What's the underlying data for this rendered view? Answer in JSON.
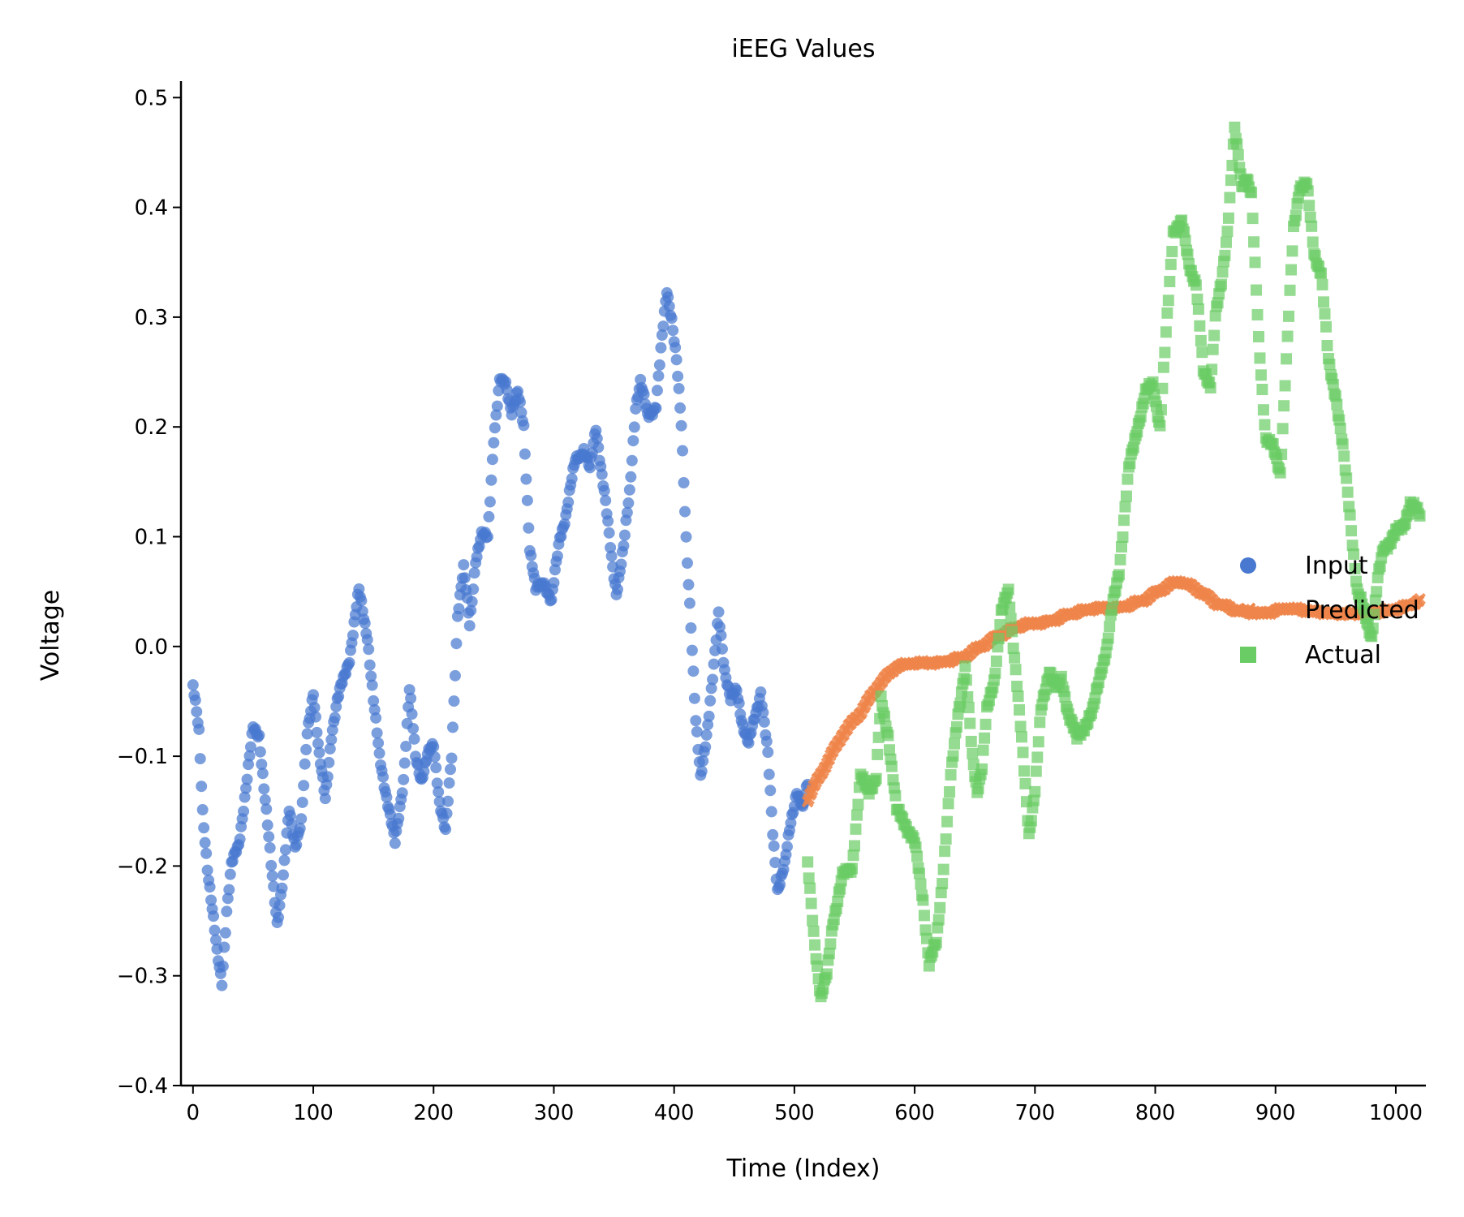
{
  "chart_data": {
    "type": "scatter",
    "title": "iEEG Values",
    "xlabel": "Time (Index)",
    "ylabel": "Voltage",
    "xlim": [
      -10,
      1025
    ],
    "ylim": [
      -0.4,
      0.515
    ],
    "xticks": [
      0,
      100,
      200,
      300,
      400,
      500,
      600,
      700,
      800,
      900,
      1000
    ],
    "yticks": [
      -0.4,
      -0.3,
      -0.2,
      -0.1,
      0.0,
      0.1,
      0.2,
      0.3,
      0.4,
      0.5
    ],
    "ytick_labels": [
      "−0.4",
      "−0.3",
      "−0.2",
      "−0.1",
      "0.0",
      "0.1",
      "0.2",
      "0.3",
      "0.4",
      "0.5"
    ],
    "grid": false,
    "legend_position": "right",
    "series": [
      {
        "name": "Input",
        "marker": "circle",
        "color": "#4878d0",
        "x_start": 0,
        "x_end": 511,
        "keypoints": [
          [
            0,
            -0.035
          ],
          [
            5,
            -0.08
          ],
          [
            8,
            -0.15
          ],
          [
            12,
            -0.2
          ],
          [
            20,
            -0.28
          ],
          [
            24,
            -0.305
          ],
          [
            28,
            -0.24
          ],
          [
            32,
            -0.2
          ],
          [
            38,
            -0.18
          ],
          [
            45,
            -0.12
          ],
          [
            50,
            -0.075
          ],
          [
            55,
            -0.08
          ],
          [
            60,
            -0.14
          ],
          [
            65,
            -0.2
          ],
          [
            70,
            -0.25
          ],
          [
            75,
            -0.21
          ],
          [
            80,
            -0.15
          ],
          [
            85,
            -0.18
          ],
          [
            90,
            -0.16
          ],
          [
            95,
            -0.08
          ],
          [
            100,
            -0.04
          ],
          [
            105,
            -0.1
          ],
          [
            110,
            -0.14
          ],
          [
            115,
            -0.08
          ],
          [
            120,
            -0.05
          ],
          [
            125,
            -0.03
          ],
          [
            130,
            -0.01
          ],
          [
            138,
            0.05
          ],
          [
            145,
            0.01
          ],
          [
            150,
            -0.05
          ],
          [
            155,
            -0.1
          ],
          [
            160,
            -0.13
          ],
          [
            168,
            -0.18
          ],
          [
            175,
            -0.12
          ],
          [
            180,
            -0.04
          ],
          [
            185,
            -0.1
          ],
          [
            190,
            -0.12
          ],
          [
            195,
            -0.1
          ],
          [
            200,
            -0.09
          ],
          [
            205,
            -0.14
          ],
          [
            210,
            -0.17
          ],
          [
            215,
            -0.1
          ],
          [
            220,
            0.03
          ],
          [
            225,
            0.07
          ],
          [
            230,
            0.02
          ],
          [
            235,
            0.08
          ],
          [
            240,
            0.1
          ],
          [
            245,
            0.1
          ],
          [
            250,
            0.19
          ],
          [
            255,
            0.24
          ],
          [
            260,
            0.24
          ],
          [
            265,
            0.215
          ],
          [
            270,
            0.23
          ],
          [
            275,
            0.2
          ],
          [
            280,
            0.09
          ],
          [
            285,
            0.05
          ],
          [
            292,
            0.06
          ],
          [
            298,
            0.04
          ],
          [
            305,
            0.1
          ],
          [
            310,
            0.12
          ],
          [
            318,
            0.17
          ],
          [
            325,
            0.18
          ],
          [
            330,
            0.16
          ],
          [
            335,
            0.2
          ],
          [
            342,
            0.14
          ],
          [
            348,
            0.08
          ],
          [
            352,
            0.05
          ],
          [
            358,
            0.09
          ],
          [
            363,
            0.14
          ],
          [
            368,
            0.22
          ],
          [
            372,
            0.24
          ],
          [
            378,
            0.21
          ],
          [
            385,
            0.22
          ],
          [
            390,
            0.28
          ],
          [
            394,
            0.325
          ],
          [
            398,
            0.3
          ],
          [
            402,
            0.26
          ],
          [
            406,
            0.2
          ],
          [
            410,
            0.1
          ],
          [
            414,
            0.02
          ],
          [
            418,
            -0.07
          ],
          [
            422,
            -0.12
          ],
          [
            428,
            -0.07
          ],
          [
            433,
            -0.02
          ],
          [
            437,
            0.03
          ],
          [
            442,
            -0.02
          ],
          [
            447,
            -0.05
          ],
          [
            452,
            -0.04
          ],
          [
            457,
            -0.07
          ],
          [
            462,
            -0.09
          ],
          [
            466,
            -0.07
          ],
          [
            472,
            -0.04
          ],
          [
            478,
            -0.1
          ],
          [
            482,
            -0.17
          ],
          [
            486,
            -0.22
          ],
          [
            492,
            -0.2
          ],
          [
            497,
            -0.16
          ],
          [
            502,
            -0.13
          ],
          [
            507,
            -0.15
          ],
          [
            511,
            -0.125
          ]
        ]
      },
      {
        "name": "Predicted",
        "marker": "x",
        "color": "#ee854a",
        "x_start": 511,
        "x_end": 1020,
        "keypoints": [
          [
            511,
            -0.14
          ],
          [
            520,
            -0.12
          ],
          [
            530,
            -0.1
          ],
          [
            540,
            -0.08
          ],
          [
            555,
            -0.06
          ],
          [
            570,
            -0.035
          ],
          [
            585,
            -0.018
          ],
          [
            600,
            -0.015
          ],
          [
            620,
            -0.015
          ],
          [
            640,
            -0.01
          ],
          [
            655,
            0.0
          ],
          [
            670,
            0.01
          ],
          [
            690,
            0.02
          ],
          [
            710,
            0.022
          ],
          [
            730,
            0.03
          ],
          [
            750,
            0.035
          ],
          [
            770,
            0.035
          ],
          [
            790,
            0.042
          ],
          [
            810,
            0.055
          ],
          [
            820,
            0.06
          ],
          [
            835,
            0.052
          ],
          [
            850,
            0.04
          ],
          [
            870,
            0.032
          ],
          [
            890,
            0.03
          ],
          [
            910,
            0.035
          ],
          [
            930,
            0.032
          ],
          [
            950,
            0.03
          ],
          [
            970,
            0.03
          ],
          [
            990,
            0.032
          ],
          [
            1005,
            0.035
          ],
          [
            1020,
            0.042
          ]
        ]
      },
      {
        "name": "Actual",
        "marker": "square",
        "color": "#6acc64",
        "x_start": 511,
        "x_end": 1020,
        "keypoints": [
          [
            511,
            -0.2
          ],
          [
            516,
            -0.26
          ],
          [
            522,
            -0.32
          ],
          [
            527,
            -0.3
          ],
          [
            532,
            -0.25
          ],
          [
            540,
            -0.21
          ],
          [
            548,
            -0.2
          ],
          [
            555,
            -0.12
          ],
          [
            562,
            -0.13
          ],
          [
            568,
            -0.12
          ],
          [
            572,
            -0.05
          ],
          [
            578,
            -0.08
          ],
          [
            585,
            -0.15
          ],
          [
            592,
            -0.16
          ],
          [
            600,
            -0.18
          ],
          [
            607,
            -0.23
          ],
          [
            612,
            -0.29
          ],
          [
            618,
            -0.27
          ],
          [
            624,
            -0.2
          ],
          [
            630,
            -0.12
          ],
          [
            636,
            -0.06
          ],
          [
            642,
            -0.02
          ],
          [
            648,
            -0.1
          ],
          [
            652,
            -0.13
          ],
          [
            656,
            -0.11
          ],
          [
            660,
            -0.06
          ],
          [
            666,
            -0.03
          ],
          [
            672,
            0.03
          ],
          [
            678,
            0.05
          ],
          [
            684,
            -0.02
          ],
          [
            690,
            -0.1
          ],
          [
            695,
            -0.17
          ],
          [
            700,
            -0.13
          ],
          [
            705,
            -0.06
          ],
          [
            712,
            -0.02
          ],
          [
            718,
            -0.04
          ],
          [
            722,
            -0.03
          ],
          [
            728,
            -0.06
          ],
          [
            735,
            -0.085
          ],
          [
            742,
            -0.07
          ],
          [
            748,
            -0.06
          ],
          [
            755,
            -0.02
          ],
          [
            760,
            0.0
          ],
          [
            765,
            0.04
          ],
          [
            770,
            0.07
          ],
          [
            778,
            0.16
          ],
          [
            785,
            0.2
          ],
          [
            792,
            0.23
          ],
          [
            798,
            0.24
          ],
          [
            804,
            0.2
          ],
          [
            810,
            0.3
          ],
          [
            815,
            0.38
          ],
          [
            822,
            0.385
          ],
          [
            828,
            0.35
          ],
          [
            834,
            0.33
          ],
          [
            840,
            0.25
          ],
          [
            846,
            0.24
          ],
          [
            850,
            0.3
          ],
          [
            855,
            0.33
          ],
          [
            860,
            0.38
          ],
          [
            866,
            0.47
          ],
          [
            872,
            0.42
          ],
          [
            876,
            0.43
          ],
          [
            880,
            0.41
          ],
          [
            886,
            0.28
          ],
          [
            892,
            0.19
          ],
          [
            898,
            0.18
          ],
          [
            904,
            0.16
          ],
          [
            910,
            0.28
          ],
          [
            915,
            0.38
          ],
          [
            920,
            0.42
          ],
          [
            926,
            0.42
          ],
          [
            932,
            0.36
          ],
          [
            938,
            0.34
          ],
          [
            944,
            0.26
          ],
          [
            950,
            0.23
          ],
          [
            956,
            0.18
          ],
          [
            962,
            0.12
          ],
          [
            968,
            0.05
          ],
          [
            974,
            0.03
          ],
          [
            980,
            0.01
          ],
          [
            985,
            0.06
          ],
          [
            990,
            0.09
          ],
          [
            998,
            0.1
          ],
          [
            1006,
            0.11
          ],
          [
            1012,
            0.13
          ],
          [
            1020,
            0.12
          ]
        ]
      }
    ]
  }
}
